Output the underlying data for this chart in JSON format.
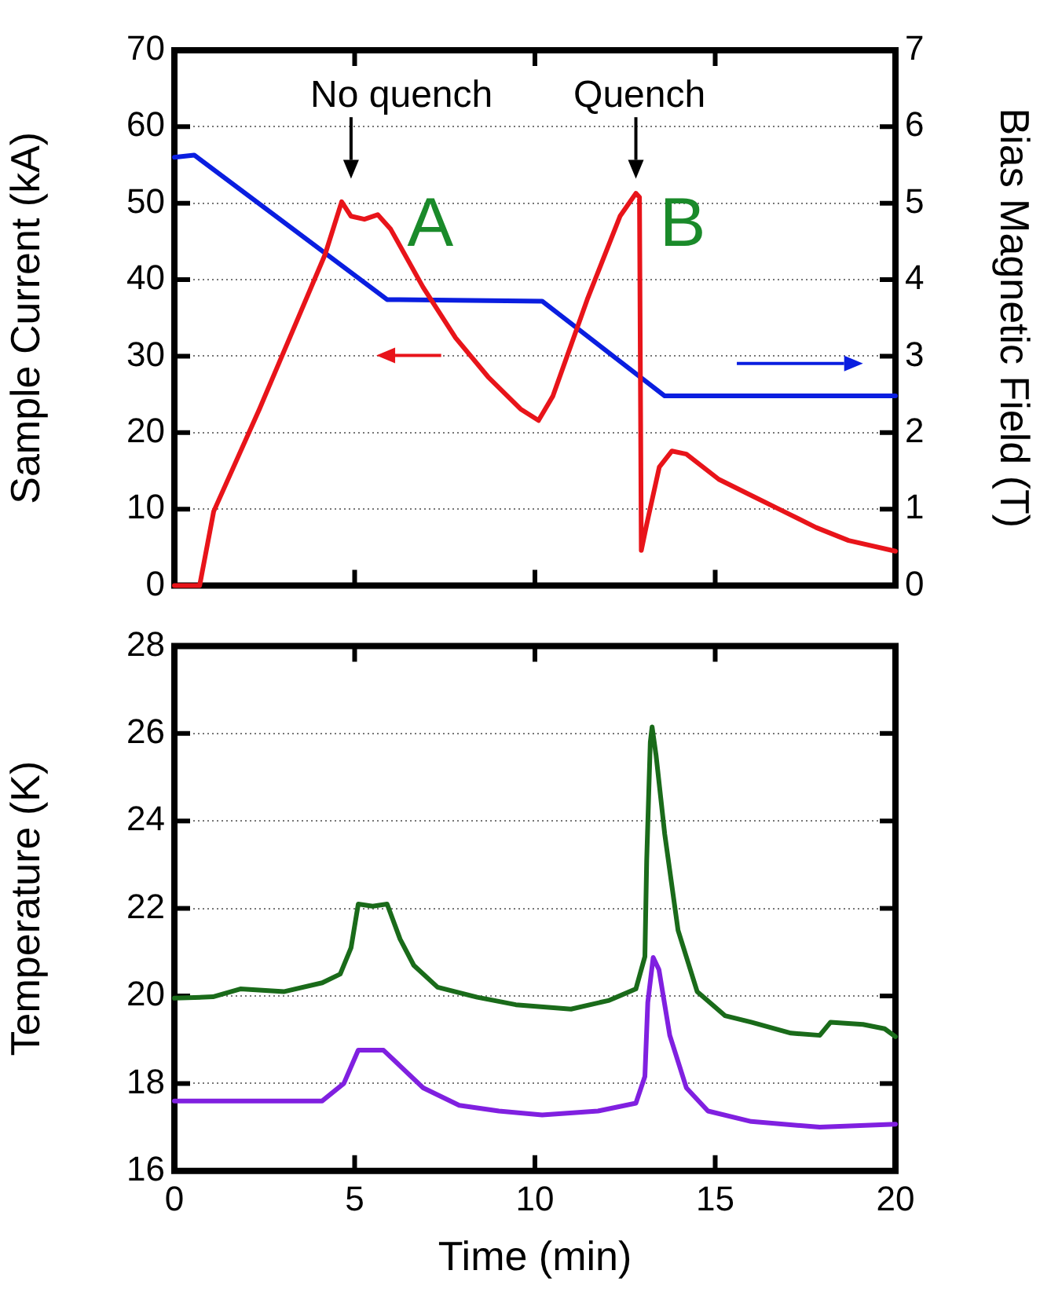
{
  "chart_data": [
    {
      "type": "line",
      "ylabel": "Sample Current (kA)",
      "y2label": "Bias Magnetic Field (T)",
      "xlim": [
        0,
        20
      ],
      "xticks": [
        {
          "value": 0,
          "label": null
        },
        {
          "value": 5,
          "label": null
        },
        {
          "value": 10,
          "label": null
        },
        {
          "value": 15,
          "label": null
        },
        {
          "value": 20,
          "label": null
        }
      ],
      "ylim": [
        0,
        70
      ],
      "yticks": [
        0,
        10,
        20,
        30,
        40,
        50,
        60,
        70
      ],
      "y2lim": [
        0,
        7
      ],
      "y2ticks": [
        0,
        1,
        2,
        3,
        4,
        5,
        6,
        7
      ],
      "grid": "y",
      "legend": false,
      "marker": "none",
      "line_style": "solid",
      "tick_labels": "y",
      "annotations": [
        "No quench",
        "Quench",
        "A",
        "B"
      ],
      "series": [
        {
          "color": "#e8141a",
          "x": [
            0,
            0.7,
            1.09,
            2.36,
            3.27,
            4.18,
            4.64,
            4.9,
            5.27,
            5.64,
            6.0,
            6.9,
            7.8,
            8.7,
            9.6,
            10.1,
            10.5,
            11.45,
            12.36,
            12.8,
            12.9,
            12.95,
            13.1,
            13.45,
            13.8,
            14.2,
            15.1,
            16,
            16.9,
            17.8,
            18.7,
            20
          ],
          "values": [
            0,
            0,
            9.7,
            23.1,
            33.2,
            43.3,
            50.2,
            48.3,
            47.9,
            48.5,
            46.6,
            39,
            32.4,
            27.3,
            23.1,
            21.6,
            24.8,
            37.4,
            48.3,
            51.3,
            50.8,
            4.6,
            8,
            15.5,
            17.6,
            17.2,
            13.9,
            11.8,
            9.7,
            7.6,
            5.9,
            4.5
          ]
        },
        {
          "color": "#0a1ee0",
          "axis": "y2",
          "x": [
            0,
            0.55,
            5.9,
            10.2,
            13.6,
            20
          ],
          "values": [
            5.6,
            5.63,
            3.74,
            3.72,
            2.48,
            2.48
          ]
        }
      ]
    },
    {
      "type": "line",
      "xlabel": "Time (min)",
      "ylabel": "Temperature (K)",
      "xlim": [
        0,
        20
      ],
      "xticks": [
        0,
        5,
        10,
        15,
        20
      ],
      "ylim": [
        16,
        28
      ],
      "yticks": [
        16,
        18,
        20,
        22,
        24,
        26,
        28
      ],
      "grid": "y",
      "legend": false,
      "marker": "none",
      "line_style": "solid",
      "series": [
        {
          "color": "#1a6b1a",
          "x": [
            0,
            1.07,
            1.83,
            3.05,
            4.1,
            4.6,
            4.9,
            5.1,
            5.5,
            5.9,
            6.26,
            6.64,
            7.3,
            8.4,
            9.47,
            11,
            12.06,
            12.8,
            13.05,
            13.1,
            13.2,
            13.25,
            13.36,
            13.6,
            13.97,
            14.5,
            15.27,
            16,
            17.1,
            17.9,
            18.2,
            19.1,
            19.7,
            20
          ],
          "values": [
            19.95,
            19.98,
            20.16,
            20.1,
            20.3,
            20.5,
            21.1,
            22.1,
            22.05,
            22.1,
            21.3,
            20.7,
            20.2,
            19.97,
            19.8,
            19.7,
            19.9,
            20.16,
            20.9,
            23.1,
            25.8,
            26.15,
            25.5,
            23.7,
            21.5,
            20.1,
            19.55,
            19.4,
            19.15,
            19.1,
            19.4,
            19.35,
            19.25,
            19.07
          ]
        },
        {
          "color": "#8020e0",
          "x": [
            0,
            4.1,
            4.7,
            5.1,
            5.8,
            6.26,
            6.9,
            7.9,
            9.0,
            10.2,
            11.75,
            12.8,
            13.05,
            13.13,
            13.28,
            13.44,
            13.74,
            14.2,
            14.8,
            16,
            17.9,
            20
          ],
          "values": [
            17.6,
            17.6,
            18.0,
            18.76,
            18.76,
            18.4,
            17.9,
            17.5,
            17.37,
            17.28,
            17.37,
            17.55,
            18.16,
            19.85,
            20.88,
            20.6,
            19.1,
            17.9,
            17.37,
            17.13,
            17.0,
            17.07
          ]
        }
      ]
    }
  ]
}
